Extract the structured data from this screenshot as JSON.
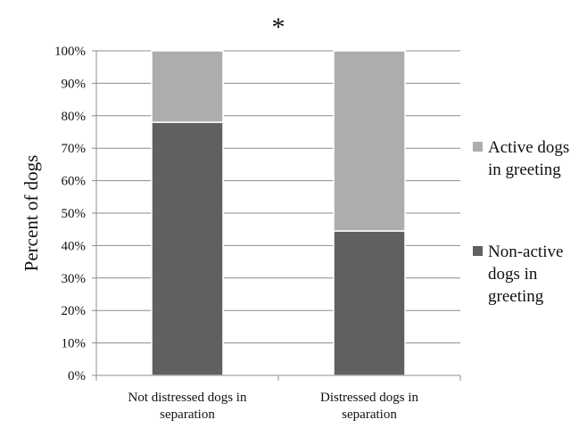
{
  "chart_data": {
    "type": "bar",
    "stacked": true,
    "percent_stacked": true,
    "annotation": "*",
    "ylabel": "Percent of dogs",
    "xlabel": "",
    "ylim": [
      0,
      100
    ],
    "yticks": [
      "0%",
      "10%",
      "20%",
      "30%",
      "40%",
      "50%",
      "60%",
      "70%",
      "80%",
      "90%",
      "100%"
    ],
    "grid": true,
    "legend_position": "right",
    "categories": [
      [
        "Not distressed dogs in",
        "separation"
      ],
      [
        "Distressed dogs in",
        "separation"
      ]
    ],
    "series": [
      {
        "name": [
          "Non-active",
          "dogs in",
          "greeting"
        ],
        "values": [
          78,
          44.5
        ],
        "color": "#606060"
      },
      {
        "name": [
          "Active dogs",
          "in greeting"
        ],
        "values": [
          22,
          55.5
        ],
        "color": "#adadad"
      }
    ],
    "legend_order": [
      1,
      0
    ]
  }
}
